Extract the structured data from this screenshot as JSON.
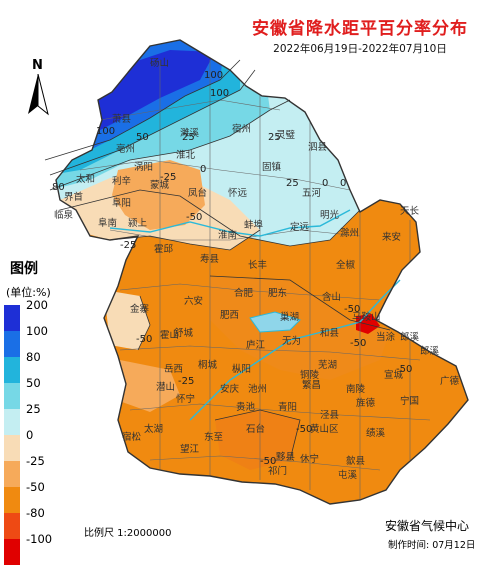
{
  "title": "安徽省降水距平百分率分布",
  "subtitle": "2022年06月19日-2022年07月10日",
  "north_label": "N",
  "legend": {
    "title": "图例",
    "unit": "(单位:%)",
    "levels": [
      {
        "label": "200",
        "color": "#1e2fd6"
      },
      {
        "label": "100",
        "color": "#1a6fe6"
      },
      {
        "label": "80",
        "color": "#22b4dc"
      },
      {
        "label": "50",
        "color": "#76d8e6"
      },
      {
        "label": "25",
        "color": "#c4eef2"
      },
      {
        "label": "0",
        "color": "#f8dcb6"
      },
      {
        "label": "-25",
        "color": "#f6aa5a"
      },
      {
        "label": "-50",
        "color": "#f08a10"
      },
      {
        "label": "-80",
        "color": "#ee4a14"
      },
      {
        "label": "-100",
        "color": "#e00000"
      }
    ]
  },
  "scale_label": "比例尺 1:2000000",
  "credit": "安徽省气候中心",
  "made_time": "制作时间: 07月12日",
  "cities": [
    "砀山",
    "萧县",
    "宿州",
    "灵璧",
    "泗县",
    "濉溪",
    "淮北",
    "亳州",
    "涡阳",
    "蒙城",
    "利辛",
    "太和",
    "界首",
    "临泉",
    "阜南",
    "颍上",
    "阜阳",
    "凤台",
    "怀远",
    "固镇",
    "五河",
    "蚌埠",
    "明光",
    "天长",
    "淮南",
    "定远",
    "滁州",
    "来安",
    "全椒",
    "寿县",
    "长丰",
    "霍邱",
    "金寨",
    "六安",
    "合肥",
    "肥东",
    "肥西",
    "舒城",
    "巢湖",
    "含山",
    "和县",
    "马鞍山",
    "当涂",
    "芜湖",
    "繁昌",
    "南陵",
    "宣城",
    "郎溪",
    "广德",
    "宁国",
    "旌德",
    "泾县",
    "绩溪",
    "黄山区",
    "歙县",
    "休宁",
    "屯溪",
    "祁门",
    "黟县",
    "石台",
    "东至",
    "贵池",
    "青阳",
    "铜陵",
    "枞阳",
    "桐城",
    "怀宁",
    "潜山",
    "岳西",
    "太湖",
    "宿松",
    "望江",
    "安庆",
    "庐江",
    "无为",
    "霍山",
    "池州",
    "郎溪"
  ],
  "contour_labels": [
    "100",
    "100",
    "100",
    "80",
    "50",
    "25",
    "25",
    "0",
    "25",
    "-25",
    "0",
    "0",
    "-25",
    "-50",
    "-50",
    "-50",
    "-50",
    "-25",
    "-50",
    "-50",
    "-50"
  ]
}
